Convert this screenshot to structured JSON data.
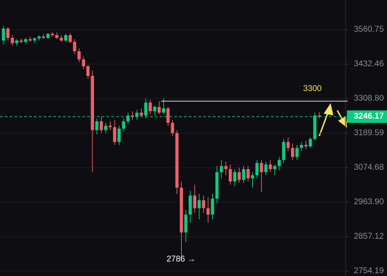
{
  "chart_data": {
    "type": "candlestick",
    "open": [
      3520,
      3565,
      3530,
      3510,
      3520,
      3515,
      3525,
      3520,
      3528,
      3535,
      3530,
      3545,
      3540,
      3530,
      3520,
      3540,
      3515,
      3480,
      3450,
      3425,
      3390,
      3200,
      3230,
      3200,
      3215,
      3210,
      3160,
      3205,
      3230,
      3250,
      3245,
      3260,
      3250,
      3295,
      3265,
      3280,
      3260,
      3275,
      3225,
      3190,
      3010,
      2870,
      2925,
      2985,
      2945,
      2970,
      2945,
      2925,
      2975,
      3060,
      3080,
      3070,
      3030,
      3060,
      3035,
      3070,
      3040,
      3050,
      3090,
      3060,
      3085,
      3070,
      3080,
      3100,
      3160,
      3140,
      3110,
      3140,
      3150,
      3145,
      3170,
      3250
    ],
    "high": [
      3575,
      3570,
      3540,
      3525,
      3528,
      3530,
      3535,
      3532,
      3540,
      3545,
      3548,
      3552,
      3550,
      3540,
      3545,
      3548,
      3525,
      3490,
      3460,
      3430,
      3410,
      3240,
      3245,
      3225,
      3230,
      3235,
      3215,
      3240,
      3260,
      3265,
      3270,
      3275,
      3310,
      3305,
      3285,
      3300,
      3310,
      3280,
      3235,
      3200,
      3030,
      2940,
      3000,
      3020,
      2990,
      2985,
      2980,
      2990,
      3080,
      3100,
      3095,
      3085,
      3070,
      3075,
      3080,
      3080,
      3060,
      3100,
      3100,
      3095,
      3100,
      3085,
      3110,
      3170,
      3175,
      3155,
      3150,
      3160,
      3165,
      3175,
      3260,
      3262
    ],
    "low": [
      3505,
      3520,
      3500,
      3500,
      3510,
      3508,
      3515,
      3510,
      3520,
      3525,
      3525,
      3535,
      3525,
      3515,
      3515,
      3510,
      3470,
      3440,
      3415,
      3380,
      3060,
      3185,
      3190,
      3190,
      3200,
      3150,
      3150,
      3195,
      3220,
      3235,
      3235,
      3245,
      3240,
      3255,
      3250,
      3255,
      3255,
      3215,
      3180,
      2990,
      2786,
      2840,
      2900,
      2930,
      2910,
      2930,
      2900,
      2910,
      2960,
      3040,
      3050,
      3020,
      3015,
      3025,
      3025,
      3030,
      3010,
      3040,
      2995,
      3050,
      3060,
      3050,
      3065,
      3090,
      3130,
      3100,
      3100,
      3130,
      3135,
      3140,
      3165,
      3240
    ],
    "close": [
      3565,
      3530,
      3510,
      3520,
      3515,
      3525,
      3520,
      3528,
      3535,
      3530,
      3545,
      3540,
      3530,
      3520,
      3540,
      3515,
      3480,
      3450,
      3425,
      3390,
      3200,
      3230,
      3200,
      3215,
      3210,
      3160,
      3205,
      3230,
      3250,
      3245,
      3260,
      3250,
      3295,
      3265,
      3280,
      3260,
      3275,
      3225,
      3190,
      3010,
      2870,
      2925,
      2985,
      2945,
      2970,
      2945,
      2925,
      2975,
      3060,
      3080,
      3070,
      3030,
      3060,
      3035,
      3070,
      3040,
      3050,
      3090,
      3060,
      3085,
      3070,
      3080,
      3100,
      3160,
      3140,
      3110,
      3140,
      3150,
      3145,
      3170,
      3250,
      3246.17
    ],
    "up_color": "#0ecb81",
    "down_color": "#f0606a",
    "ylim": [
      2740,
      3675
    ],
    "log_scale": true,
    "grid": true,
    "yticks": [
      3560.75,
      3432.46,
      {
        "value": 3308.8,
        "label": "3308.80"
      },
      3189.59,
      3074.68,
      {
        "value": 2963.9,
        "label": "2963.90"
      },
      2857.12,
      2754.19
    ],
    "last_price": 3246.17,
    "last_price_color": "#0ecb81",
    "resistance": 3300,
    "resistance_color": "#f5e663",
    "low_label": "2786 →"
  }
}
